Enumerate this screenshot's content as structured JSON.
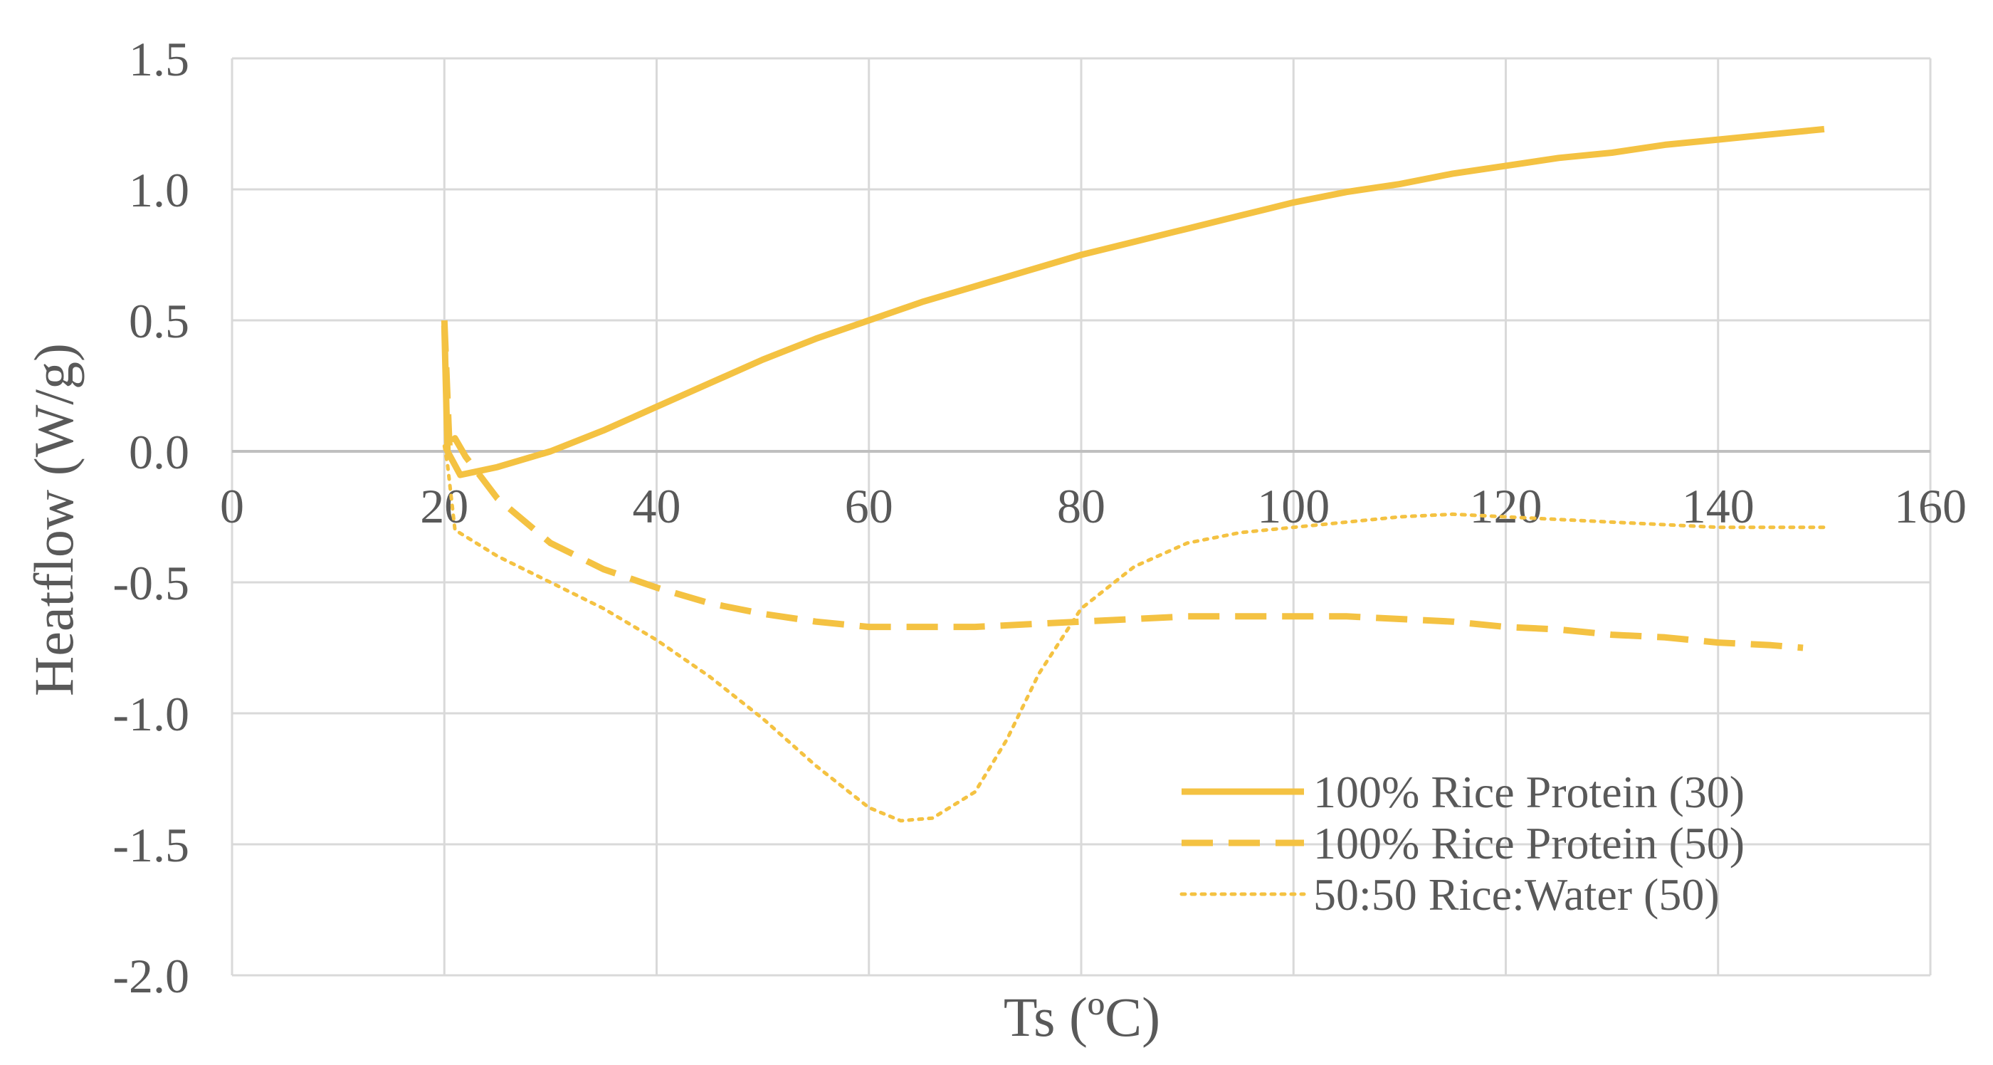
{
  "chart_data": {
    "type": "line",
    "xlabel": "Ts (ºC)",
    "ylabel": "Heatflow (W/g)",
    "xlim": [
      0,
      160
    ],
    "ylim": [
      -2.0,
      1.5
    ],
    "x_ticks": [
      "0",
      "20",
      "40",
      "60",
      "80",
      "100",
      "120",
      "140",
      "160"
    ],
    "y_ticks": [
      "1.5",
      "1.0",
      "0.5",
      "0.0",
      "-0.5",
      "-1.0",
      "-1.5",
      "-2.0"
    ],
    "grid": true,
    "legend_position": "bottom-right",
    "line_color": "#F4C242",
    "series": [
      {
        "name": "100% Rice Protein (30)",
        "style": "solid",
        "points": [
          [
            20,
            0.48
          ],
          [
            20.3,
            0.0
          ],
          [
            21.5,
            -0.09
          ],
          [
            25,
            -0.06
          ],
          [
            30,
            0.0
          ],
          [
            35,
            0.08
          ],
          [
            40,
            0.17
          ],
          [
            45,
            0.26
          ],
          [
            50,
            0.35
          ],
          [
            55,
            0.43
          ],
          [
            60,
            0.5
          ],
          [
            65,
            0.57
          ],
          [
            70,
            0.63
          ],
          [
            75,
            0.69
          ],
          [
            80,
            0.75
          ],
          [
            85,
            0.8
          ],
          [
            90,
            0.85
          ],
          [
            95,
            0.9
          ],
          [
            100,
            0.95
          ],
          [
            105,
            0.99
          ],
          [
            110,
            1.02
          ],
          [
            115,
            1.06
          ],
          [
            120,
            1.09
          ],
          [
            125,
            1.12
          ],
          [
            130,
            1.14
          ],
          [
            135,
            1.17
          ],
          [
            140,
            1.19
          ],
          [
            145,
            1.21
          ],
          [
            150,
            1.23
          ]
        ]
      },
      {
        "name": "100% Rice Protein (50)",
        "style": "dashed",
        "points": [
          [
            20,
            0.5
          ],
          [
            20.5,
            0.0
          ],
          [
            21,
            0.05
          ],
          [
            22,
            -0.02
          ],
          [
            25,
            -0.18
          ],
          [
            30,
            -0.35
          ],
          [
            35,
            -0.45
          ],
          [
            40,
            -0.52
          ],
          [
            45,
            -0.58
          ],
          [
            50,
            -0.62
          ],
          [
            55,
            -0.65
          ],
          [
            60,
            -0.67
          ],
          [
            65,
            -0.67
          ],
          [
            70,
            -0.67
          ],
          [
            75,
            -0.66
          ],
          [
            80,
            -0.65
          ],
          [
            85,
            -0.64
          ],
          [
            90,
            -0.63
          ],
          [
            95,
            -0.63
          ],
          [
            100,
            -0.63
          ],
          [
            105,
            -0.63
          ],
          [
            110,
            -0.64
          ],
          [
            115,
            -0.65
          ],
          [
            120,
            -0.67
          ],
          [
            125,
            -0.68
          ],
          [
            130,
            -0.7
          ],
          [
            135,
            -0.71
          ],
          [
            140,
            -0.73
          ],
          [
            145,
            -0.74
          ],
          [
            148,
            -0.75
          ]
        ]
      },
      {
        "name": "50:50 Rice:Water (50)",
        "style": "dotted",
        "points": [
          [
            20,
            0.02
          ],
          [
            20.3,
            -0.05
          ],
          [
            21,
            -0.3
          ],
          [
            25,
            -0.4
          ],
          [
            30,
            -0.5
          ],
          [
            35,
            -0.6
          ],
          [
            40,
            -0.72
          ],
          [
            45,
            -0.86
          ],
          [
            50,
            -1.02
          ],
          [
            55,
            -1.2
          ],
          [
            60,
            -1.36
          ],
          [
            63,
            -1.41
          ],
          [
            66,
            -1.4
          ],
          [
            70,
            -1.3
          ],
          [
            73,
            -1.1
          ],
          [
            76,
            -0.85
          ],
          [
            80,
            -0.6
          ],
          [
            85,
            -0.44
          ],
          [
            90,
            -0.35
          ],
          [
            95,
            -0.31
          ],
          [
            100,
            -0.29
          ],
          [
            105,
            -0.27
          ],
          [
            110,
            -0.25
          ],
          [
            115,
            -0.24
          ],
          [
            120,
            -0.25
          ],
          [
            125,
            -0.26
          ],
          [
            130,
            -0.27
          ],
          [
            135,
            -0.28
          ],
          [
            140,
            -0.29
          ],
          [
            145,
            -0.29
          ],
          [
            150,
            -0.29
          ]
        ]
      }
    ]
  }
}
